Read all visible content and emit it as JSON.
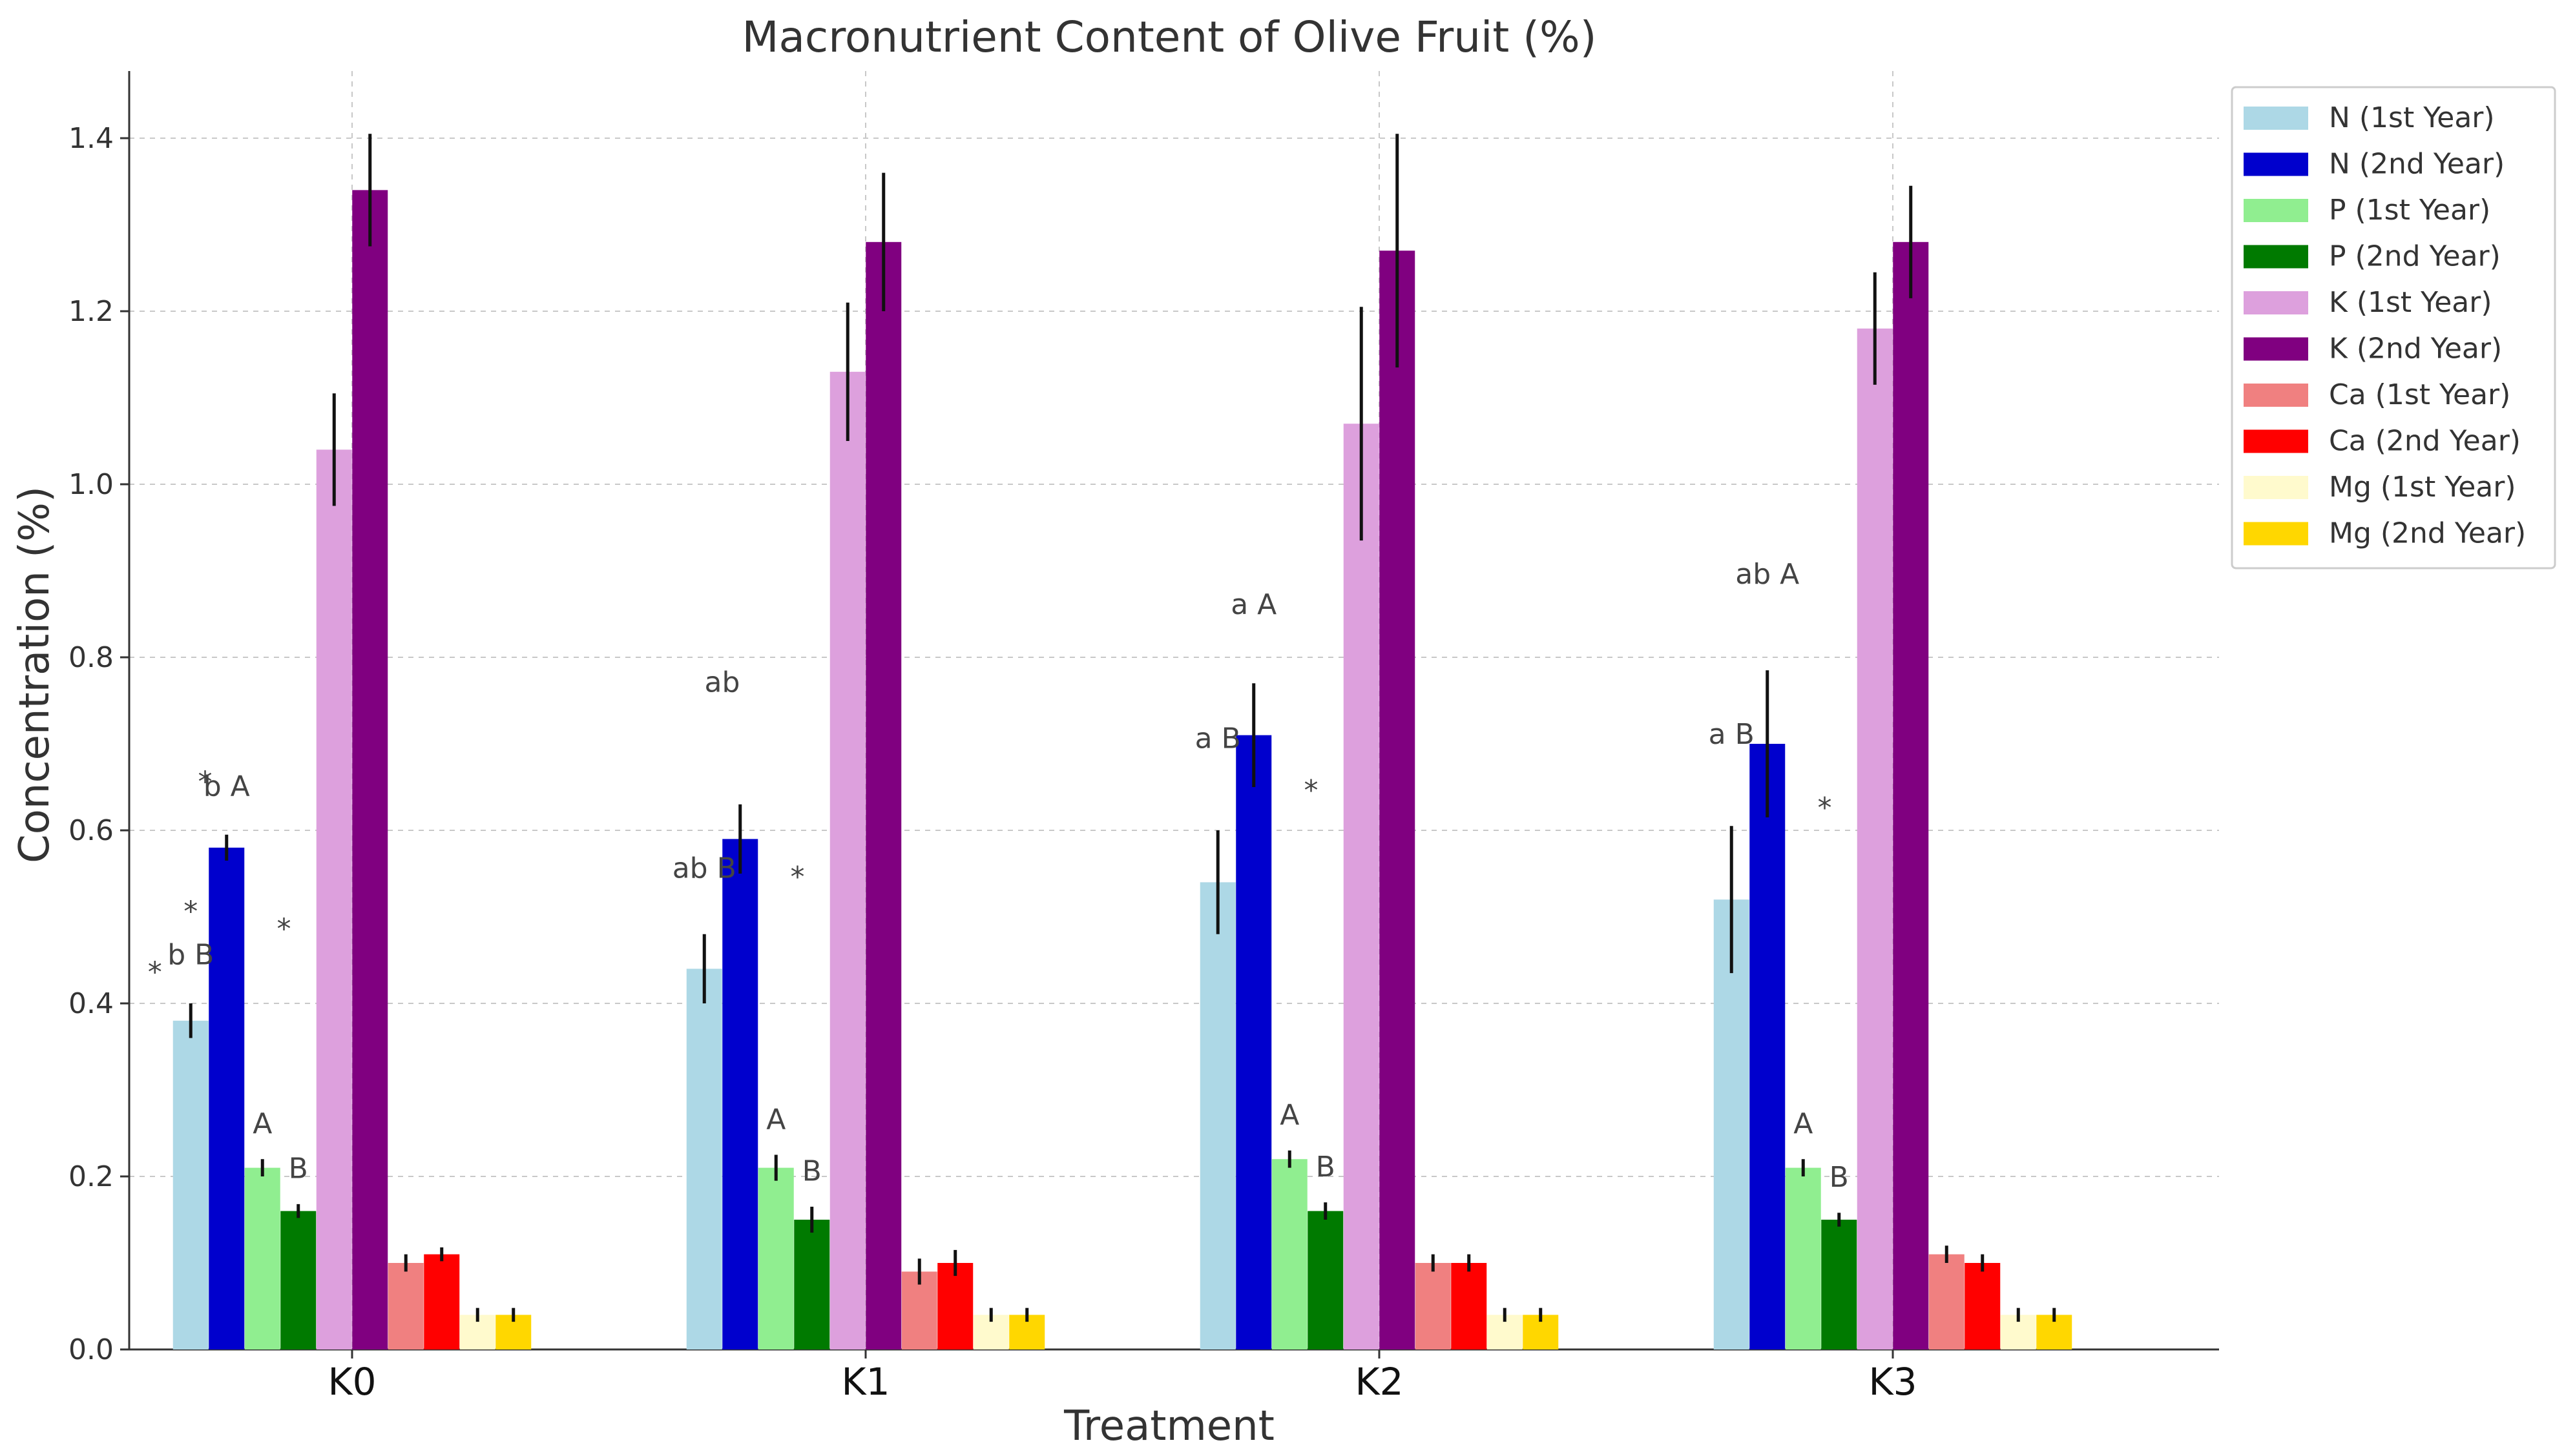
{
  "chart_data": {
    "type": "bar",
    "title": "Macronutrient Content of Olive Fruit (%)",
    "xlabel": "Treatment",
    "ylabel": "Concentration (%)",
    "ylim": [
      0,
      1.48
    ],
    "yticks": [
      "0.0",
      "0.2",
      "0.4",
      "0.6",
      "0.8",
      "1.0",
      "1.2",
      "1.4"
    ],
    "ytick_values": [
      0,
      0.2,
      0.4,
      0.6,
      0.8,
      1.0,
      1.2,
      1.4
    ],
    "grid": true,
    "legend_position": "top-right",
    "categories": [
      "K0",
      "K1",
      "K2",
      "K3"
    ],
    "series": [
      {
        "name": "N (1st Year)",
        "color": "#add8e6",
        "values": [
          0.38,
          0.44,
          0.54,
          0.52
        ],
        "errors": [
          0.02,
          0.04,
          0.06,
          0.085
        ]
      },
      {
        "name": "N (2nd Year)",
        "color": "#0000cd",
        "values": [
          0.58,
          0.59,
          0.71,
          0.7
        ],
        "errors": [
          0.015,
          0.04,
          0.06,
          0.085
        ]
      },
      {
        "name": "P (1st Year)",
        "color": "#90ee90",
        "values": [
          0.21,
          0.21,
          0.22,
          0.21
        ],
        "errors": [
          0.01,
          0.015,
          0.01,
          0.01
        ]
      },
      {
        "name": "P (2nd Year)",
        "color": "#007a00",
        "values": [
          0.16,
          0.15,
          0.16,
          0.15
        ],
        "errors": [
          0.008,
          0.015,
          0.01,
          0.008
        ]
      },
      {
        "name": "K (1st Year)",
        "color": "#dda0dd",
        "values": [
          1.04,
          1.13,
          1.07,
          1.18
        ],
        "errors": [
          0.065,
          0.08,
          0.135,
          0.065
        ]
      },
      {
        "name": "K (2nd Year)",
        "color": "#800080",
        "values": [
          1.34,
          1.28,
          1.27,
          1.28
        ],
        "errors": [
          0.065,
          0.08,
          0.135,
          0.065
        ]
      },
      {
        "name": "Ca (1st Year)",
        "color": "#f08080",
        "values": [
          0.1,
          0.09,
          0.1,
          0.11
        ],
        "errors": [
          0.01,
          0.015,
          0.01,
          0.01
        ]
      },
      {
        "name": "Ca (2nd Year)",
        "color": "#ff0000",
        "values": [
          0.11,
          0.1,
          0.1,
          0.1
        ],
        "errors": [
          0.008,
          0.015,
          0.01,
          0.01
        ]
      },
      {
        "name": "Mg (1st Year)",
        "color": "#fffacd",
        "values": [
          0.04,
          0.04,
          0.04,
          0.04
        ],
        "errors": [
          0.008,
          0.008,
          0.008,
          0.008
        ]
      },
      {
        "name": "Mg (2nd Year)",
        "color": "#ffd700",
        "values": [
          0.04,
          0.04,
          0.04,
          0.04
        ],
        "errors": [
          0.008,
          0.008,
          0.008,
          0.008
        ]
      }
    ],
    "annotations": [
      {
        "text": "b B",
        "category": "K0",
        "series": 0,
        "offset": 0.045
      },
      {
        "text": "*",
        "category": "K0",
        "series": 0,
        "offset": 0.095
      },
      {
        "text": "*",
        "category": "K0",
        "series": -1,
        "offset": 0.045
      },
      {
        "text": "b A",
        "category": "K0",
        "series": 1,
        "offset": 0.045
      },
      {
        "text": "*",
        "category": "K0",
        "series": 0.4,
        "offset": 0.265
      },
      {
        "text": "A",
        "category": "K0",
        "series": 2,
        "offset": 0.03
      },
      {
        "text": "B",
        "category": "K0",
        "series": 3,
        "offset": 0.03
      },
      {
        "text": "*",
        "category": "K0",
        "series": 2.6,
        "offset": 0.095
      },
      {
        "text": "ab B",
        "category": "K1",
        "series": 0,
        "offset": 0.065
      },
      {
        "text": "ab",
        "category": "K1",
        "series": 0.5,
        "offset": 0.32
      },
      {
        "text": "A",
        "category": "K1",
        "series": 2,
        "offset": 0.03
      },
      {
        "text": "B",
        "category": "K1",
        "series": 3,
        "offset": 0.03
      },
      {
        "text": "*",
        "category": "K1",
        "series": 2.6,
        "offset": 0.095
      },
      {
        "text": "a B",
        "category": "K2",
        "series": 0,
        "offset": 0.095
      },
      {
        "text": "a A",
        "category": "K2",
        "series": 1,
        "offset": 0.08
      },
      {
        "text": "A",
        "category": "K2",
        "series": 2,
        "offset": 0.03
      },
      {
        "text": "B",
        "category": "K2",
        "series": 3,
        "offset": 0.03
      },
      {
        "text": "*",
        "category": "K2",
        "series": 2.6,
        "offset": 0.095
      },
      {
        "text": "a B",
        "category": "K3",
        "series": 0,
        "offset": 0.095
      },
      {
        "text": "ab A",
        "category": "K3",
        "series": 1,
        "offset": 0.1
      },
      {
        "text": "A",
        "category": "K3",
        "series": 2,
        "offset": 0.03
      },
      {
        "text": "B",
        "category": "K3",
        "series": 3,
        "offset": 0.03
      },
      {
        "text": "*",
        "category": "K3",
        "series": 2.6,
        "offset": 0.095
      }
    ]
  }
}
